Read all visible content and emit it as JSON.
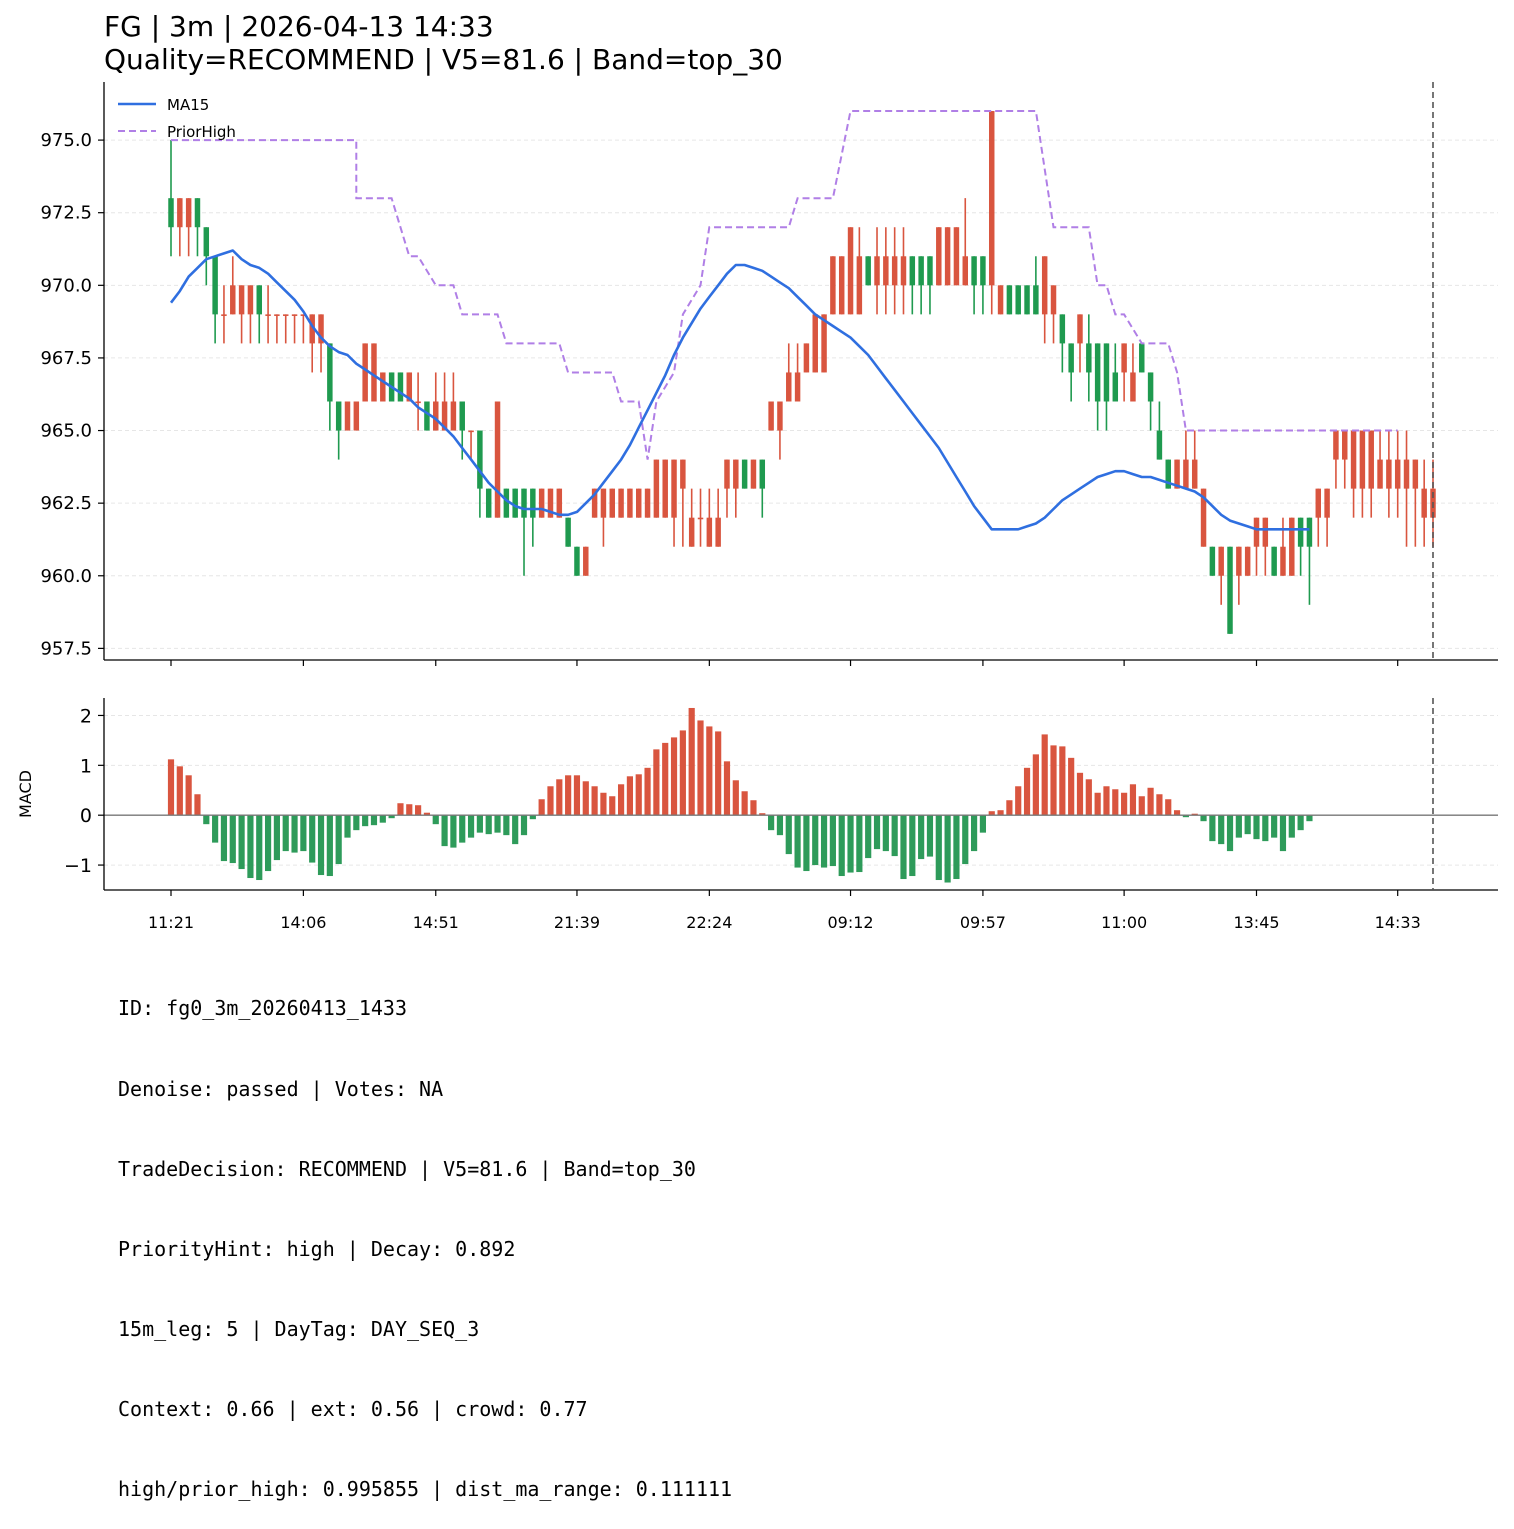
{
  "title_lines": [
    "FG | 3m | 2026-04-13 14:33",
    "Quality=RECOMMEND | V5=81.6 | Band=top_30"
  ],
  "colors": {
    "up": "#d9553f",
    "down": "#1f9a4f",
    "ma": "#2f6fe0",
    "prior_high": "#b07fe6",
    "grid": "#e6e6e6",
    "cursor": "#555555"
  },
  "chart_data": [
    {
      "type": "candlestick",
      "legend": [
        "MA15",
        "PriorHigh"
      ],
      "legend_position": "top-left",
      "ylim": [
        957.1,
        977.0
      ],
      "yticks": [
        957.5,
        960.0,
        962.5,
        965.0,
        967.5,
        970.0,
        972.5,
        975.0
      ],
      "ytick_labels": [
        "957.5",
        "960.0",
        "962.5",
        "965.0",
        "967.5",
        "970.0",
        "972.5",
        "975.0"
      ],
      "xtick_labels": [
        "11:21",
        "14:06",
        "14:51",
        "21:39",
        "22:24",
        "09:12",
        "09:57",
        "11:00",
        "13:45",
        "14:33"
      ],
      "xtick_index": [
        0,
        15,
        30,
        46,
        61,
        77,
        92,
        108,
        123,
        139
      ],
      "grid": "horizontal",
      "candles": [
        [
          973,
          972,
          975,
          971
        ],
        [
          972,
          973,
          973,
          971
        ],
        [
          972,
          973,
          973,
          971
        ],
        [
          973,
          972,
          973,
          971
        ],
        [
          972,
          971,
          972,
          970
        ],
        [
          971,
          969,
          971,
          968
        ],
        [
          969,
          969,
          970,
          968
        ],
        [
          969,
          970,
          971,
          969
        ],
        [
          969,
          970,
          970,
          968
        ],
        [
          969,
          970,
          970,
          968
        ],
        [
          970,
          969,
          970,
          968
        ],
        [
          969,
          969,
          970,
          968
        ],
        [
          969,
          969,
          969,
          968
        ],
        [
          969,
          969,
          969,
          968
        ],
        [
          969,
          969,
          969,
          968
        ],
        [
          969,
          969,
          969,
          968
        ],
        [
          968,
          969,
          969,
          967
        ],
        [
          968,
          969,
          969,
          967
        ],
        [
          968,
          966,
          968,
          965
        ],
        [
          966,
          965,
          966,
          964
        ],
        [
          965,
          966,
          966,
          965
        ],
        [
          965,
          966,
          966,
          965
        ],
        [
          966,
          968,
          968,
          966
        ],
        [
          966,
          968,
          968,
          966
        ],
        [
          966,
          967,
          967,
          966
        ],
        [
          967,
          966,
          967,
          966
        ],
        [
          967,
          966,
          967,
          966
        ],
        [
          966,
          967,
          967,
          966
        ],
        [
          966,
          966,
          967,
          965
        ],
        [
          966,
          965,
          966,
          965
        ],
        [
          965,
          966,
          967,
          965
        ],
        [
          965,
          966,
          967,
          965
        ],
        [
          965,
          966,
          967,
          965
        ],
        [
          966,
          965,
          966,
          964
        ],
        [
          965,
          965,
          965,
          964
        ],
        [
          965,
          963,
          965,
          962
        ],
        [
          963,
          962,
          963,
          962
        ],
        [
          962,
          966,
          966,
          962
        ],
        [
          963,
          962,
          963,
          962
        ],
        [
          963,
          962,
          963,
          962
        ],
        [
          963,
          962,
          963,
          960
        ],
        [
          963,
          962,
          963,
          961
        ],
        [
          962,
          963,
          963,
          962
        ],
        [
          962,
          963,
          963,
          962
        ],
        [
          962,
          963,
          963,
          962
        ],
        [
          962,
          961,
          962,
          961
        ],
        [
          961,
          960,
          961,
          960
        ],
        [
          960,
          961,
          961,
          960
        ],
        [
          962,
          963,
          963,
          962
        ],
        [
          962,
          963,
          963,
          961
        ],
        [
          962,
          963,
          963,
          962
        ],
        [
          962,
          963,
          963,
          962
        ],
        [
          962,
          963,
          963,
          962
        ],
        [
          962,
          963,
          963,
          962
        ],
        [
          962,
          963,
          963,
          962
        ],
        [
          962,
          964,
          964,
          962
        ],
        [
          962,
          964,
          964,
          962
        ],
        [
          962,
          964,
          964,
          961
        ],
        [
          963,
          964,
          964,
          961
        ],
        [
          961,
          962,
          963,
          961
        ],
        [
          962,
          962,
          963,
          961
        ],
        [
          961,
          962,
          963,
          961
        ],
        [
          961,
          962,
          963,
          961
        ],
        [
          963,
          964,
          964,
          962
        ],
        [
          963,
          964,
          964,
          962
        ],
        [
          964,
          963,
          964,
          963
        ],
        [
          963,
          964,
          964,
          963
        ],
        [
          964,
          963,
          964,
          962
        ],
        [
          965,
          966,
          966,
          965
        ],
        [
          965,
          966,
          966,
          964
        ],
        [
          966,
          967,
          968,
          966
        ],
        [
          966,
          967,
          968,
          966
        ],
        [
          967,
          968,
          968,
          967
        ],
        [
          967,
          969,
          969,
          967
        ],
        [
          967,
          969,
          969,
          967
        ],
        [
          969,
          971,
          971,
          969
        ],
        [
          969,
          971,
          971,
          969
        ],
        [
          969,
          972,
          972,
          969
        ],
        [
          969,
          971,
          972,
          969
        ],
        [
          971,
          970,
          971,
          970
        ],
        [
          970,
          971,
          972,
          969
        ],
        [
          970,
          971,
          972,
          969
        ],
        [
          970,
          971,
          972,
          969
        ],
        [
          970,
          971,
          972,
          969
        ],
        [
          971,
          970,
          971,
          969
        ],
        [
          971,
          970,
          971,
          969
        ],
        [
          971,
          970,
          971,
          969
        ],
        [
          970,
          972,
          972,
          970
        ],
        [
          970,
          972,
          972,
          970
        ],
        [
          970,
          972,
          972,
          970
        ],
        [
          970,
          971,
          973,
          970
        ],
        [
          971,
          970,
          971,
          969
        ],
        [
          971,
          970,
          971,
          969
        ],
        [
          970,
          976,
          976,
          969
        ],
        [
          969,
          970,
          970,
          969
        ],
        [
          970,
          969,
          970,
          969
        ],
        [
          970,
          969,
          970,
          969
        ],
        [
          970,
          969,
          970,
          969
        ],
        [
          970,
          969,
          971,
          969
        ],
        [
          969,
          971,
          971,
          968
        ],
        [
          969,
          970,
          970,
          968
        ],
        [
          969,
          968,
          969,
          967
        ],
        [
          968,
          967,
          968,
          966
        ],
        [
          968,
          969,
          969,
          967
        ],
        [
          968,
          967,
          969,
          966
        ],
        [
          968,
          966,
          968,
          965
        ],
        [
          968,
          966,
          968,
          965
        ],
        [
          967,
          966,
          968,
          966
        ],
        [
          967,
          968,
          968,
          966
        ],
        [
          966,
          967,
          968,
          966
        ],
        [
          968,
          967,
          968,
          967
        ],
        [
          967,
          966,
          967,
          965
        ],
        [
          965,
          964,
          966,
          964
        ],
        [
          964,
          963,
          964,
          963
        ],
        [
          963,
          964,
          964,
          963
        ],
        [
          963,
          964,
          965,
          963
        ],
        [
          963,
          964,
          965,
          963
        ],
        [
          961,
          963,
          963,
          961
        ],
        [
          961,
          960,
          961,
          960
        ],
        [
          960,
          961,
          961,
          959
        ],
        [
          961,
          958,
          961,
          958
        ],
        [
          960,
          961,
          961,
          959
        ],
        [
          960,
          961,
          961,
          960
        ],
        [
          961,
          962,
          962,
          960
        ],
        [
          961,
          962,
          962,
          960
        ],
        [
          961,
          960,
          961,
          960
        ],
        [
          960,
          961,
          962,
          960
        ],
        [
          960,
          962,
          962,
          960
        ],
        [
          962,
          961,
          962,
          960
        ],
        [
          962,
          961,
          962,
          959
        ],
        [
          962,
          963,
          963,
          961
        ],
        [
          962,
          963,
          963,
          961
        ],
        [
          964,
          965,
          965,
          963
        ],
        [
          964,
          965,
          965,
          963
        ],
        [
          963,
          965,
          965,
          962
        ],
        [
          963,
          965,
          965,
          962
        ],
        [
          963,
          965,
          965,
          962
        ],
        [
          963,
          964,
          965,
          963
        ],
        [
          963,
          964,
          965,
          962
        ],
        [
          963,
          964,
          965,
          962
        ],
        [
          963,
          964,
          965,
          961
        ],
        [
          963,
          964,
          964,
          961
        ],
        [
          962,
          963,
          964,
          961
        ],
        [
          962,
          963,
          964,
          961
        ]
      ],
      "ma": [
        969.4,
        969.8,
        970.3,
        970.6,
        970.9,
        971.0,
        971.1,
        971.2,
        970.9,
        970.7,
        970.6,
        970.4,
        970.1,
        969.8,
        969.5,
        969.1,
        968.6,
        968.2,
        967.9,
        967.7,
        967.6,
        967.3,
        967.1,
        966.9,
        966.7,
        966.5,
        966.3,
        966.1,
        965.8,
        965.6,
        965.4,
        965.1,
        964.8,
        964.4,
        964.0,
        963.6,
        963.2,
        962.9,
        962.6,
        962.4,
        962.3,
        962.3,
        962.3,
        962.2,
        962.1,
        962.1,
        962.2,
        962.5,
        962.8,
        963.2,
        963.6,
        964.0,
        964.5,
        965.1,
        965.7,
        966.3,
        966.9,
        967.6,
        968.2,
        968.7,
        969.2,
        969.6,
        970.0,
        970.4,
        970.7,
        970.7,
        970.6,
        970.5,
        970.3,
        970.1,
        969.9,
        969.6,
        969.3,
        969.0,
        968.8,
        968.6,
        968.4,
        968.2,
        967.9,
        967.6,
        967.2,
        966.8,
        966.4,
        966.0,
        965.6,
        965.2,
        964.8,
        964.4,
        963.9,
        963.4,
        962.9,
        962.4,
        962.0,
        961.6,
        961.6,
        961.6,
        961.6,
        961.7,
        961.8,
        962.0,
        962.3,
        962.6,
        962.8,
        963.0,
        963.2,
        963.4,
        963.5,
        963.6,
        963.6,
        963.5,
        963.4,
        963.4,
        963.3,
        963.2,
        963.1,
        963.0,
        962.9,
        962.7,
        962.4,
        962.1,
        961.9,
        961.8,
        961.7,
        961.6,
        961.6,
        961.6,
        961.6,
        961.6,
        961.6,
        961.6
      ],
      "prior_high": [
        [
          0,
          975
        ],
        [
          21,
          975
        ],
        [
          21,
          973
        ],
        [
          25,
          973
        ],
        [
          27,
          971
        ],
        [
          28,
          971
        ],
        [
          30,
          970
        ],
        [
          32,
          970
        ],
        [
          33,
          969
        ],
        [
          37,
          969
        ],
        [
          38,
          968
        ],
        [
          44,
          968
        ],
        [
          45,
          967
        ],
        [
          50,
          967
        ],
        [
          51,
          966
        ],
        [
          53,
          966
        ],
        [
          54,
          964
        ],
        [
          54,
          964
        ],
        [
          55,
          966
        ],
        [
          57,
          967
        ],
        [
          58,
          969
        ],
        [
          60,
          970
        ],
        [
          61,
          972
        ],
        [
          70,
          972
        ],
        [
          71,
          973
        ],
        [
          75,
          973
        ],
        [
          77,
          976
        ],
        [
          98,
          976
        ],
        [
          100,
          972
        ],
        [
          104,
          972
        ],
        [
          105,
          970
        ],
        [
          106,
          970
        ],
        [
          107,
          969
        ],
        [
          108,
          969
        ],
        [
          110,
          968
        ],
        [
          113,
          968
        ],
        [
          114,
          967
        ],
        [
          115,
          965
        ],
        [
          139,
          965
        ]
      ]
    },
    {
      "type": "bar",
      "ylabel": "MACD",
      "ylim": [
        -1.5,
        2.35
      ],
      "yticks": [
        -1,
        0,
        1,
        2
      ],
      "ytick_labels": [
        "−1",
        "0",
        "1",
        "2"
      ],
      "values": [
        1.12,
        0.98,
        0.8,
        0.42,
        -0.18,
        -0.55,
        -0.92,
        -0.96,
        -1.08,
        -1.26,
        -1.3,
        -1.12,
        -0.9,
        -0.72,
        -0.75,
        -0.72,
        -0.95,
        -1.2,
        -1.22,
        -0.98,
        -0.45,
        -0.3,
        -0.22,
        -0.2,
        -0.15,
        -0.06,
        0.24,
        0.22,
        0.2,
        0.05,
        -0.18,
        -0.62,
        -0.65,
        -0.55,
        -0.45,
        -0.35,
        -0.38,
        -0.35,
        -0.4,
        -0.58,
        -0.4,
        -0.08,
        0.32,
        0.58,
        0.72,
        0.8,
        0.8,
        0.68,
        0.58,
        0.45,
        0.38,
        0.62,
        0.78,
        0.82,
        0.95,
        1.32,
        1.45,
        1.56,
        1.7,
        2.15,
        1.9,
        1.78,
        1.68,
        1.08,
        0.7,
        0.48,
        0.3,
        0.04,
        -0.3,
        -0.4,
        -0.78,
        -1.05,
        -1.12,
        -1.0,
        -1.05,
        -1.02,
        -1.22,
        -1.15,
        -1.14,
        -0.86,
        -0.68,
        -0.72,
        -0.82,
        -1.28,
        -1.22,
        -0.88,
        -0.83,
        -1.3,
        -1.35,
        -1.28,
        -0.98,
        -0.72,
        -0.35,
        0.08,
        0.1,
        0.3,
        0.58,
        0.95,
        1.22,
        1.62,
        1.4,
        1.38,
        1.15,
        0.85,
        0.72,
        0.45,
        0.58,
        0.52,
        0.45,
        0.62,
        0.38,
        0.55,
        0.42,
        0.32,
        0.1,
        -0.04,
        0.03,
        -0.12,
        -0.52,
        -0.58,
        -0.72,
        -0.45,
        -0.38,
        -0.48,
        -0.52,
        -0.45,
        -0.72,
        -0.45,
        -0.3,
        -0.12
      ]
    }
  ],
  "info_lines": [
    "ID: fg0_3m_20260413_1433",
    "Denoise: passed | Votes: NA",
    "TradeDecision: RECOMMEND | V5=81.6 | Band=top_30",
    "PriorityHint: high | Decay: 0.892",
    "15m_leg: 5 | DayTag: DAY_SEQ_3",
    "Context: 0.66 | ext: 0.56 | crowd: 0.77",
    "high/prior_high: 0.995855 | dist_ma_range: 0.111111"
  ]
}
